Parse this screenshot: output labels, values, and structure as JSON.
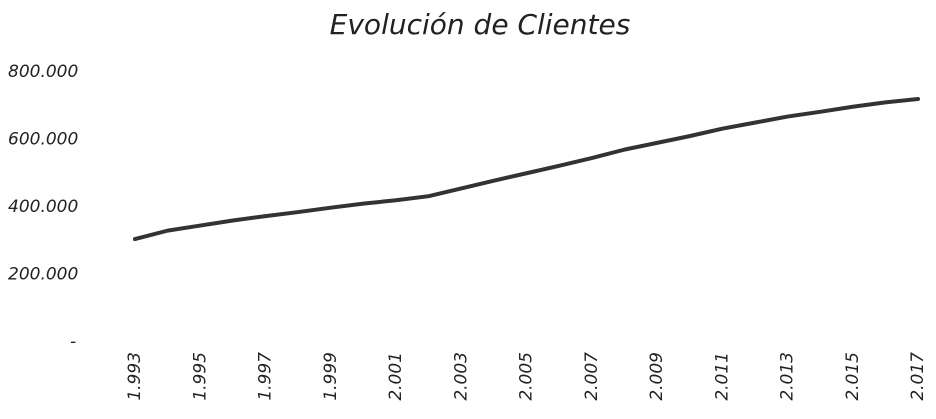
{
  "chart_data": {
    "type": "line",
    "title": "Evolución de Clientes",
    "categories": [
      "1.993",
      null,
      "1.995",
      null,
      "1.997",
      null,
      "1.999",
      null,
      "2.001",
      null,
      "2.003",
      null,
      "2.005",
      null,
      "2.007",
      null,
      "2.009",
      null,
      "2.011",
      null,
      "2.013",
      null,
      "2.015",
      null,
      "2.017"
    ],
    "series": [
      {
        "name": "Clientes",
        "color": "#333333",
        "values": [
          305000,
          330000,
          345000,
          360000,
          373000,
          385000,
          398000,
          410000,
          420000,
          432000,
          455000,
          478000,
          500000,
          522000,
          545000,
          570000,
          590000,
          610000,
          632000,
          650000,
          668000,
          682000,
          697000,
          710000,
          720000
        ]
      }
    ],
    "ylim": [
      0,
      800000
    ],
    "yticks": [
      {
        "value": 0,
        "label": "-"
      },
      {
        "value": 200000,
        "label": "200.000"
      },
      {
        "value": 400000,
        "label": "400.000"
      },
      {
        "value": 600000,
        "label": "600.000"
      },
      {
        "value": 800000,
        "label": "800.000"
      }
    ],
    "grid": false
  }
}
